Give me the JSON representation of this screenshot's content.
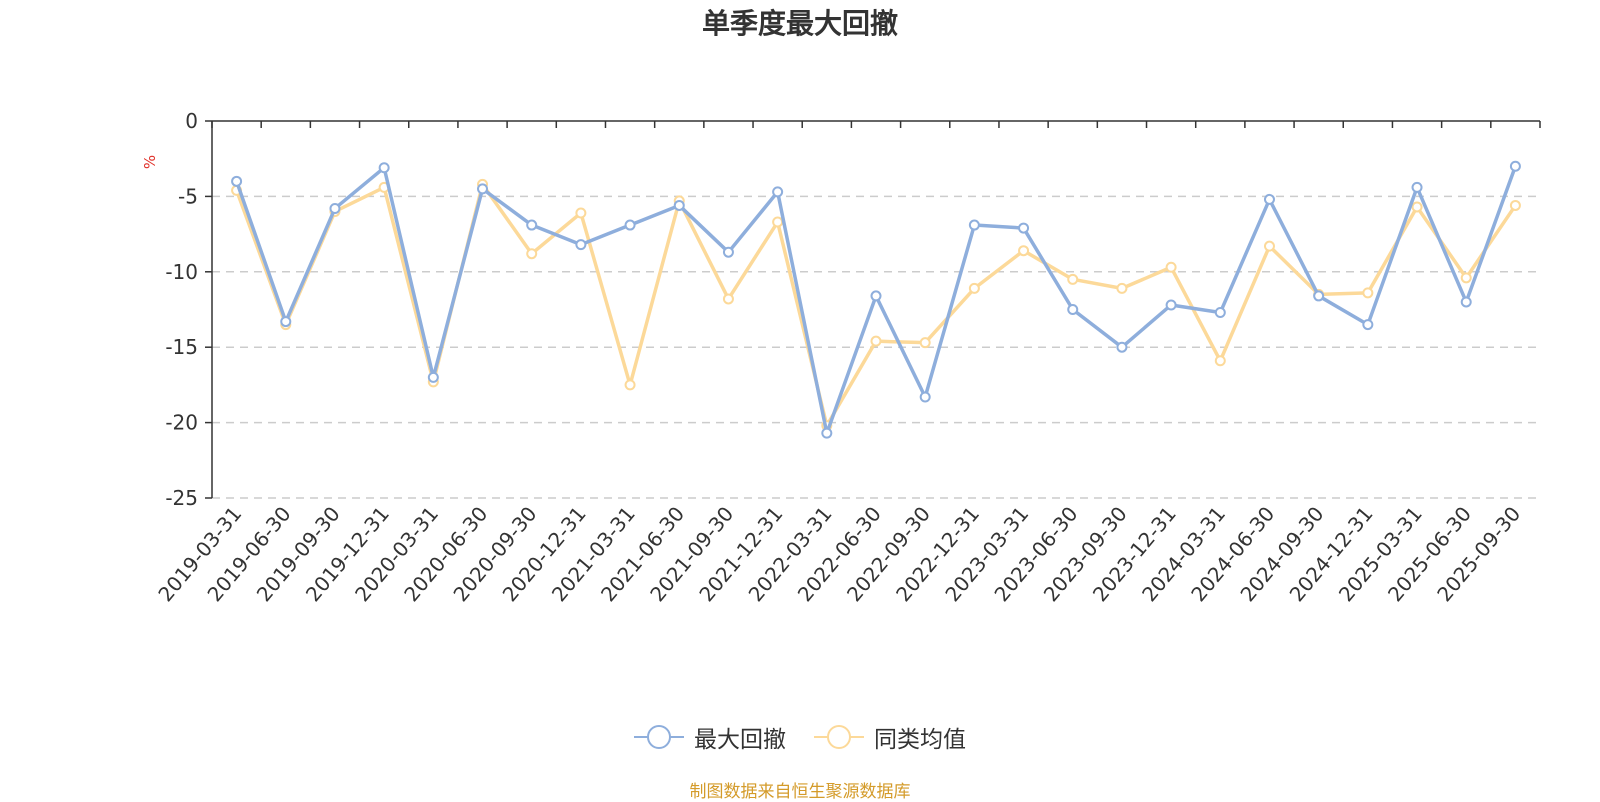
{
  "chart_data": {
    "type": "line",
    "title": "单季度最大回撤",
    "ylabel": "%",
    "xlabel": "",
    "ylim": [
      -25,
      0
    ],
    "yticks": [
      0,
      -5,
      -10,
      -15,
      -20,
      -25
    ],
    "grid": "horizontal-dashed",
    "legend_position": "bottom-center",
    "categories": [
      "2019-03-31",
      "2019-06-30",
      "2019-09-30",
      "2019-12-31",
      "2020-03-31",
      "2020-06-30",
      "2020-09-30",
      "2020-12-31",
      "2021-03-31",
      "2021-06-30",
      "2021-09-30",
      "2021-12-31",
      "2022-03-31",
      "2022-06-30",
      "2022-09-30",
      "2022-12-31",
      "2023-03-31",
      "2023-06-30",
      "2023-09-30",
      "2023-12-31",
      "2024-03-31",
      "2024-06-30",
      "2024-09-30",
      "2024-12-31",
      "2025-03-31",
      "2025-06-30",
      "2025-09-30"
    ],
    "series": [
      {
        "name": "最大回撤",
        "color": "#8eaedc",
        "values": [
          -4.0,
          -13.3,
          -5.8,
          -3.1,
          -17.0,
          -4.5,
          -6.9,
          -8.2,
          -6.9,
          -5.6,
          -8.7,
          -4.7,
          -20.7,
          -11.6,
          -18.3,
          -6.9,
          -7.1,
          -12.5,
          -15.0,
          -12.2,
          -12.7,
          -5.2,
          -11.6,
          -13.5,
          -4.4,
          -12.0,
          -3.0
        ]
      },
      {
        "name": "同类均值",
        "color": "#fcd999",
        "values": [
          -4.6,
          -13.5,
          -6.0,
          -4.4,
          -17.3,
          -4.2,
          -8.8,
          -6.1,
          -17.5,
          -5.3,
          -11.8,
          -6.7,
          -20.2,
          -14.6,
          -14.7,
          -11.1,
          -8.6,
          -10.5,
          -11.1,
          -9.7,
          -15.9,
          -8.3,
          -11.5,
          -11.4,
          -5.7,
          -10.4,
          -5.6
        ]
      }
    ]
  },
  "footer": {
    "source": "制图数据来自恒生聚源数据库"
  }
}
